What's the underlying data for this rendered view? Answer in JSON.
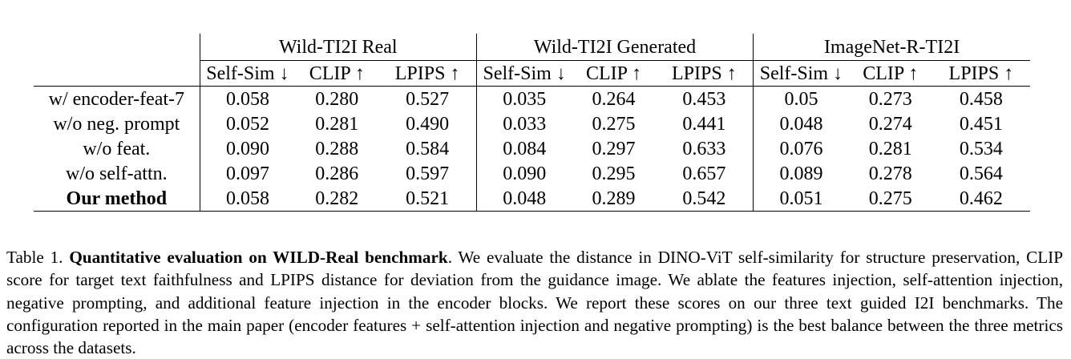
{
  "table": {
    "groups": [
      "Wild-TI2I Real",
      "Wild-TI2I Generated",
      "ImageNet-R-TI2I"
    ],
    "metrics": [
      "Self-Sim ↓",
      "CLIP ↑",
      "LPIPS ↑"
    ],
    "rows": [
      {
        "label": "w/ encoder-feat-7",
        "bold": false,
        "values": [
          "0.058",
          "0.280",
          "0.527",
          "0.035",
          "0.264",
          "0.453",
          "0.05",
          "0.273",
          "0.458"
        ]
      },
      {
        "label": "w/o neg. prompt",
        "bold": false,
        "values": [
          "0.052",
          "0.281",
          "0.490",
          "0.033",
          "0.275",
          "0.441",
          "0.048",
          "0.274",
          "0.451"
        ]
      },
      {
        "label": "w/o feat.",
        "bold": false,
        "values": [
          "0.090",
          "0.288",
          "0.584",
          "0.084",
          "0.297",
          "0.633",
          "0.076",
          "0.281",
          "0.534"
        ]
      },
      {
        "label": "w/o self-attn.",
        "bold": false,
        "values": [
          "0.097",
          "0.286",
          "0.597",
          "0.090",
          "0.295",
          "0.657",
          "0.089",
          "0.278",
          "0.564"
        ]
      },
      {
        "label": "Our method",
        "bold": true,
        "values": [
          "0.058",
          "0.282",
          "0.521",
          "0.048",
          "0.289",
          "0.542",
          "0.051",
          "0.275",
          "0.462"
        ]
      }
    ]
  },
  "caption": {
    "number": "Table 1.",
    "title": "Quantitative evaluation on WILD-Real benchmark",
    "body": ".  We evaluate the distance in DINO-ViT self-similarity for structure preservation, CLIP score for target text faithfulness and LPIPS distance for deviation from the guidance image.  We ablate the features injection, self-attention injection, negative prompting, and additional feature injection in the encoder blocks. We report these scores on our three text guided I2I benchmarks. The configuration reported in the main paper (encoder features + self-attention injection and negative prompting) is the best balance between the three metrics across the datasets."
  }
}
